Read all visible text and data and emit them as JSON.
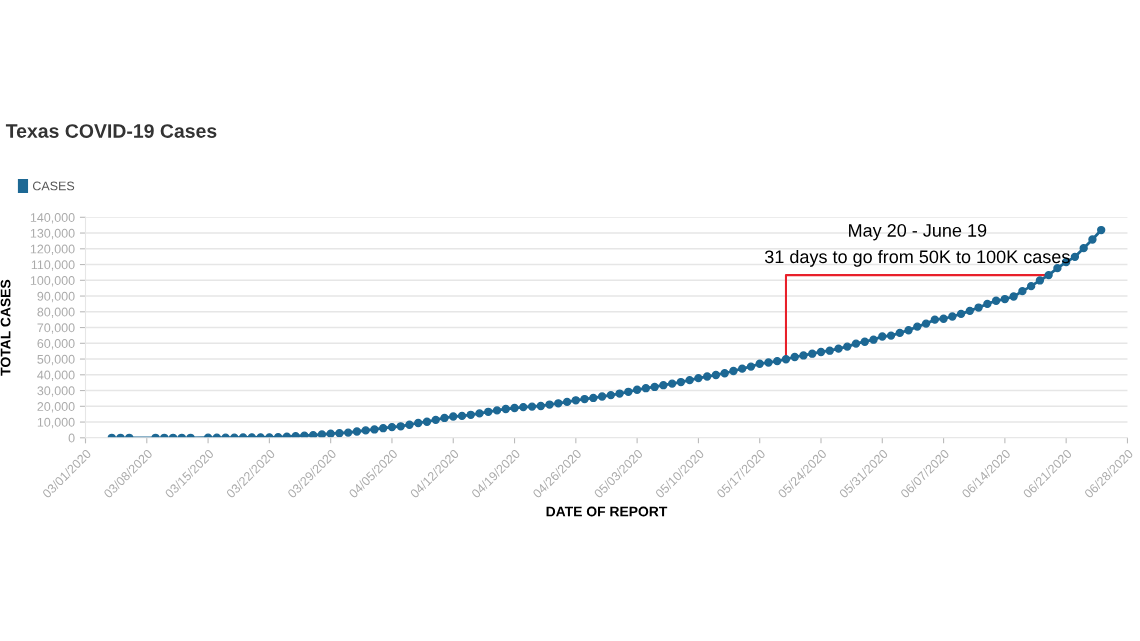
{
  "chart_data": {
    "type": "line",
    "title": "Texas COVID-19 Cases",
    "xlabel": "DATE OF REPORT",
    "ylabel": "TOTAL CASES",
    "x": [
      "2020-03-04",
      "2020-03-05",
      "2020-03-06",
      "2020-03-09",
      "2020-03-10",
      "2020-03-11",
      "2020-03-12",
      "2020-03-13",
      "2020-03-15",
      "2020-03-16",
      "2020-03-17",
      "2020-03-18",
      "2020-03-19",
      "2020-03-20",
      "2020-03-21",
      "2020-03-22",
      "2020-03-23",
      "2020-03-24",
      "2020-03-25",
      "2020-03-26",
      "2020-03-27",
      "2020-03-28",
      "2020-03-29",
      "2020-03-30",
      "2020-03-31",
      "2020-04-01",
      "2020-04-02",
      "2020-04-03",
      "2020-04-04",
      "2020-04-05",
      "2020-04-06",
      "2020-04-07",
      "2020-04-08",
      "2020-04-09",
      "2020-04-10",
      "2020-04-11",
      "2020-04-12",
      "2020-04-13",
      "2020-04-14",
      "2020-04-15",
      "2020-04-16",
      "2020-04-17",
      "2020-04-18",
      "2020-04-19",
      "2020-04-20",
      "2020-04-21",
      "2020-04-22",
      "2020-04-23",
      "2020-04-24",
      "2020-04-25",
      "2020-04-26",
      "2020-04-27",
      "2020-04-28",
      "2020-04-29",
      "2020-04-30",
      "2020-05-01",
      "2020-05-02",
      "2020-05-03",
      "2020-05-04",
      "2020-05-05",
      "2020-05-06",
      "2020-05-07",
      "2020-05-08",
      "2020-05-09",
      "2020-05-10",
      "2020-05-11",
      "2020-05-12",
      "2020-05-13",
      "2020-05-14",
      "2020-05-15",
      "2020-05-16",
      "2020-05-17",
      "2020-05-18",
      "2020-05-19",
      "2020-05-20",
      "2020-05-21",
      "2020-05-22",
      "2020-05-23",
      "2020-05-24",
      "2020-05-25",
      "2020-05-26",
      "2020-05-27",
      "2020-05-28",
      "2020-05-29",
      "2020-05-30",
      "2020-05-31",
      "2020-06-01",
      "2020-06-02",
      "2020-06-03",
      "2020-06-04",
      "2020-06-05",
      "2020-06-06",
      "2020-06-07",
      "2020-06-08",
      "2020-06-09",
      "2020-06-10",
      "2020-06-11",
      "2020-06-12",
      "2020-06-13",
      "2020-06-14",
      "2020-06-15",
      "2020-06-16",
      "2020-06-17",
      "2020-06-18",
      "2020-06-19",
      "2020-06-20",
      "2020-06-21",
      "2020-06-22",
      "2020-06-23",
      "2020-06-24",
      "2020-06-25"
    ],
    "series": [
      {
        "name": "CASES",
        "color": "#1d6894",
        "values": [
          0,
          0,
          0,
          0,
          0,
          0,
          0,
          0,
          100,
          100,
          100,
          100,
          200,
          300,
          300,
          300,
          400,
          700,
          1000,
          1400,
          1700,
          2100,
          2600,
          2900,
          3300,
          4000,
          4700,
          5300,
          6100,
          6800,
          7300,
          8300,
          9400,
          10200,
          11400,
          12600,
          13500,
          13900,
          14600,
          15500,
          16500,
          17400,
          18300,
          18900,
          19500,
          19800,
          20200,
          21100,
          21900,
          22800,
          23800,
          24600,
          25300,
          26200,
          27100,
          28100,
          29200,
          30500,
          31500,
          32300,
          33400,
          34400,
          35400,
          36600,
          37900,
          38900,
          39900,
          41000,
          42400,
          43900,
          45200,
          47000,
          47800,
          48700,
          49900,
          51300,
          52300,
          53400,
          54500,
          55300,
          56600,
          57900,
          59800,
          61000,
          62300,
          64300,
          64900,
          66600,
          68300,
          70600,
          72500,
          75000,
          75600,
          77000,
          78700,
          80600,
          82700,
          85000,
          87000,
          88100,
          89700,
          93100,
          96300,
          99900,
          103300,
          107700,
          111600,
          114900,
          120400,
          125900,
          131900
        ]
      },
      {
        "type": "line",
        "color": "#e8202a",
        "marker": "none",
        "x": [
          "2020-05-20",
          "2020-05-20",
          "2020-06-19"
        ],
        "values": [
          51300,
          103300,
          103300
        ]
      }
    ],
    "annotations": [
      "May 20 - June 19",
      "31 days to go from 50K to 100K cases"
    ],
    "xlim": [
      "2020-03-01",
      "2020-06-28"
    ],
    "xticks": [
      {
        "value": "2020-03-01",
        "label": "03/01/2020"
      },
      {
        "value": "2020-03-08",
        "label": "03/08/2020"
      },
      {
        "value": "2020-03-15",
        "label": "03/15/2020"
      },
      {
        "value": "2020-03-22",
        "label": "03/22/2020"
      },
      {
        "value": "2020-03-29",
        "label": "03/29/2020"
      },
      {
        "value": "2020-04-05",
        "label": "04/05/2020"
      },
      {
        "value": "2020-04-12",
        "label": "04/12/2020"
      },
      {
        "value": "2020-04-19",
        "label": "04/19/2020"
      },
      {
        "value": "2020-04-26",
        "label": "04/26/2020"
      },
      {
        "value": "2020-05-03",
        "label": "05/03/2020"
      },
      {
        "value": "2020-05-10",
        "label": "05/10/2020"
      },
      {
        "value": "2020-05-17",
        "label": "05/17/2020"
      },
      {
        "value": "2020-05-24",
        "label": "05/24/2020"
      },
      {
        "value": "2020-05-31",
        "label": "05/31/2020"
      },
      {
        "value": "2020-06-07",
        "label": "06/07/2020"
      },
      {
        "value": "2020-06-14",
        "label": "06/14/2020"
      },
      {
        "value": "2020-06-21",
        "label": "06/21/2020"
      },
      {
        "value": "2020-06-28",
        "label": "06/28/2020"
      }
    ],
    "ylim": [
      0,
      140000
    ],
    "yticks": [
      0,
      {
        "value": 10000,
        "label": "10,000"
      },
      {
        "value": 20000,
        "label": "20,000"
      },
      {
        "value": 30000,
        "label": "30,000"
      },
      {
        "value": 40000,
        "label": "40,000"
      },
      {
        "value": 50000,
        "label": "50,000"
      },
      {
        "value": 60000,
        "label": "60,000"
      },
      {
        "value": 70000,
        "label": "70,000"
      },
      {
        "value": 80000,
        "label": "80,000"
      },
      {
        "value": 90000,
        "label": "90,000"
      },
      {
        "value": 100000,
        "label": "100,000"
      },
      {
        "value": 110000,
        "label": "110,000"
      },
      {
        "value": 120000,
        "label": "120,000"
      },
      {
        "value": 130000,
        "label": "130,000"
      },
      {
        "value": 140000,
        "label": "140,000"
      }
    ],
    "grid": "y",
    "legend": "top left",
    "marker": "circle",
    "line_style": "solid"
  }
}
